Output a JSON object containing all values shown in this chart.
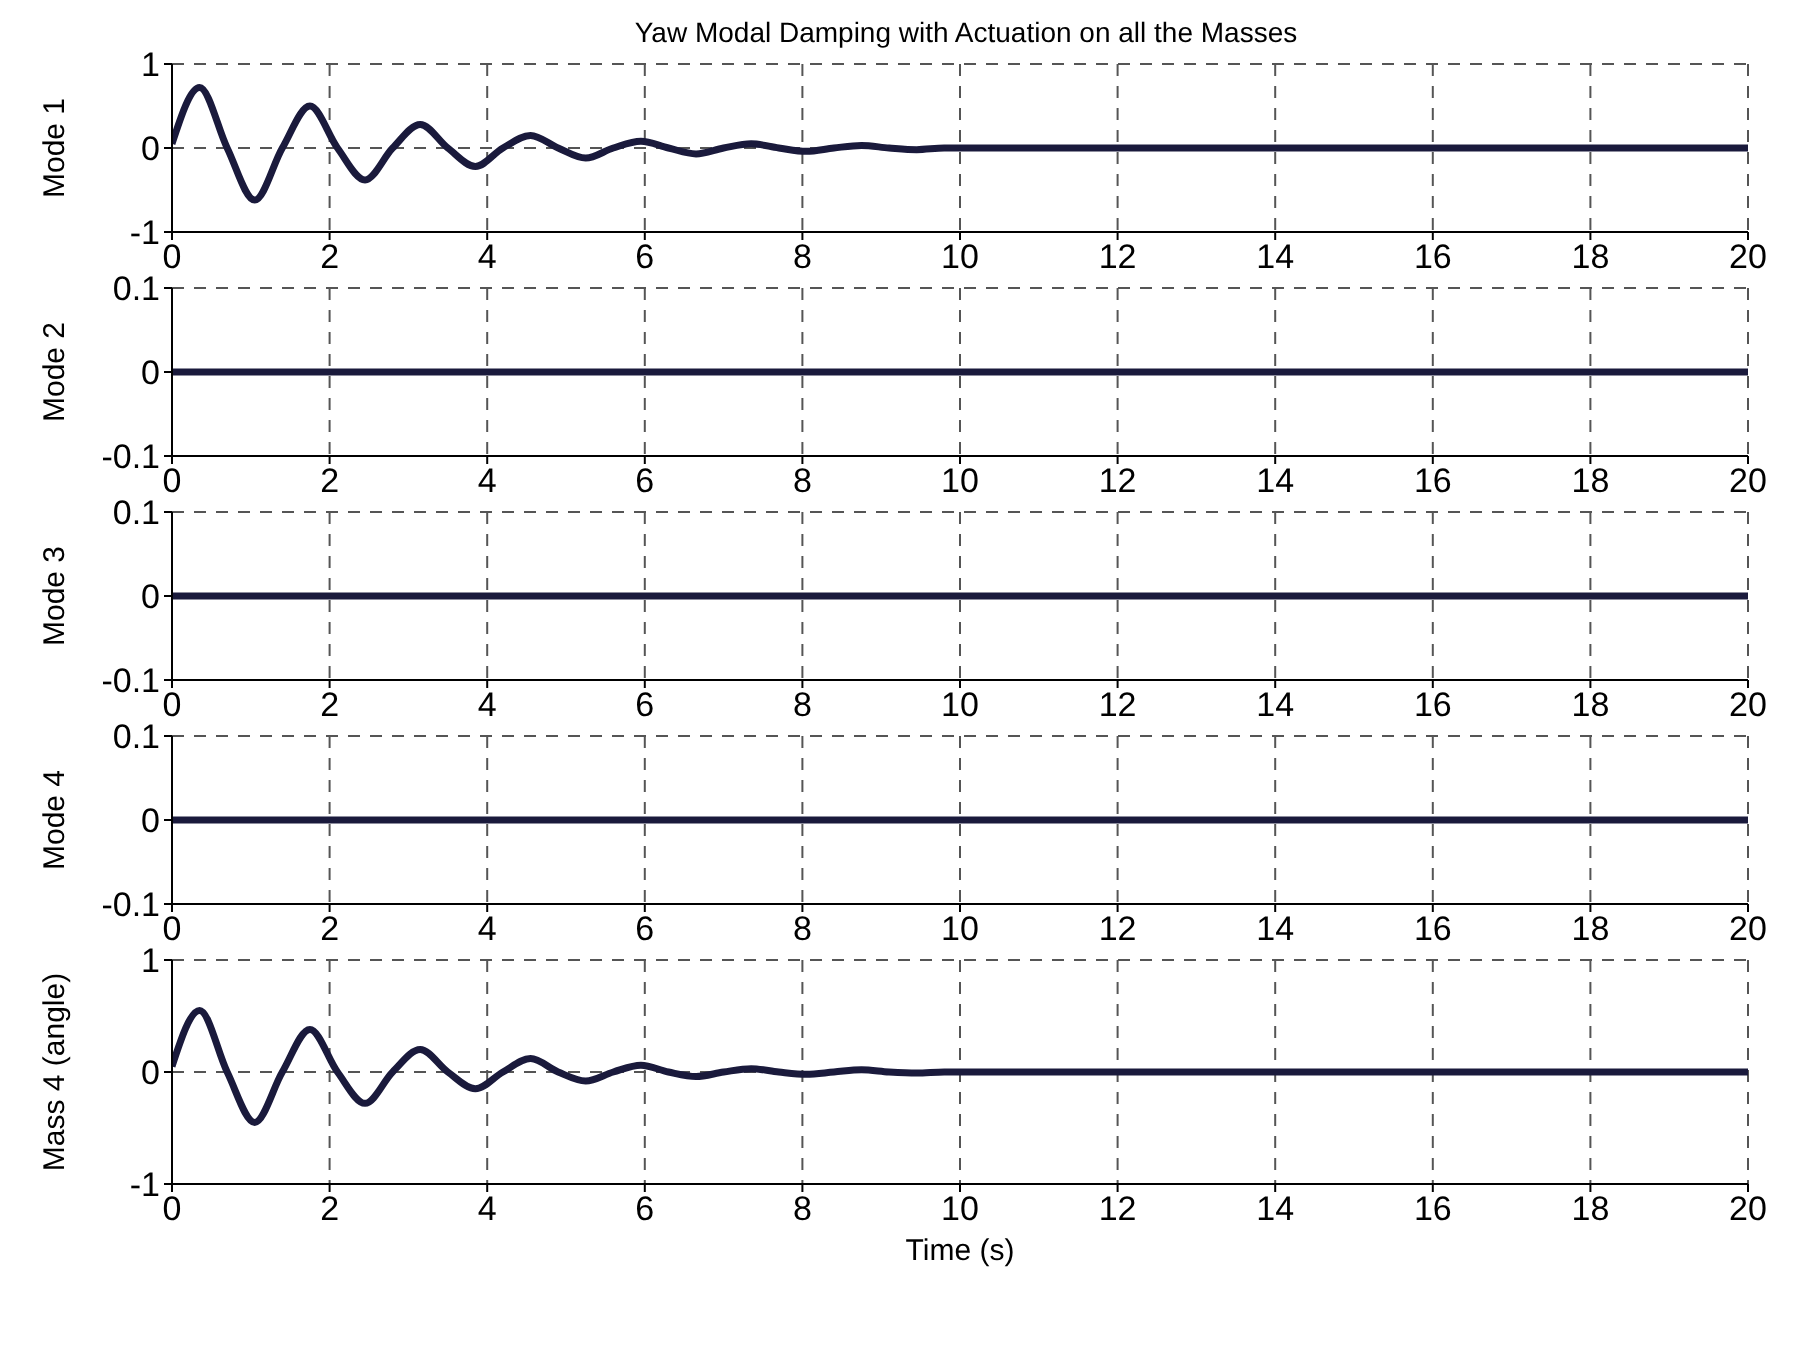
{
  "chart_data": [
    {
      "type": "line",
      "title": "Yaw Modal Damping with Actuation on all the Masses",
      "ylabel": "Mode 1",
      "x": [
        0,
        0.35,
        0.7,
        1.05,
        1.4,
        1.75,
        2.1,
        2.45,
        2.8,
        3.15,
        3.5,
        3.85,
        4.2,
        4.55,
        4.9,
        5.25,
        5.6,
        5.95,
        6.3,
        6.65,
        7.0,
        7.35,
        7.7,
        8.05,
        8.4,
        8.75,
        9.1,
        9.45,
        9.8,
        20
      ],
      "series": [
        {
          "color": "#1a1a3c",
          "values": [
            0.05,
            0.72,
            0,
            -0.62,
            0,
            0.5,
            0,
            -0.38,
            0,
            0.28,
            0,
            -0.22,
            0,
            0.15,
            0,
            -0.12,
            0,
            0.08,
            0,
            -0.07,
            0,
            0.05,
            0,
            -0.04,
            0,
            0.03,
            0,
            -0.02,
            0,
            0
          ]
        }
      ],
      "xlim": [
        0,
        20
      ],
      "xticks": [
        0,
        2,
        4,
        6,
        8,
        10,
        12,
        14,
        16,
        18,
        20
      ],
      "ylim": [
        -1,
        1
      ],
      "yticks": [
        -1,
        0,
        1
      ],
      "grid": true,
      "marker": "none",
      "line_style": "solid"
    },
    {
      "type": "line",
      "ylabel": "Mode 2",
      "x": [
        0,
        20
      ],
      "series": [
        {
          "color": "#1a1a3c",
          "values": [
            0,
            0
          ]
        }
      ],
      "xlim": [
        0,
        20
      ],
      "xticks": [
        0,
        2,
        4,
        6,
        8,
        10,
        12,
        14,
        16,
        18,
        20
      ],
      "ylim": [
        -0.1,
        0.1
      ],
      "yticks": [
        -0.1,
        0,
        0.1
      ],
      "grid": true,
      "marker": "none",
      "line_style": "solid"
    },
    {
      "type": "line",
      "ylabel": "Mode 3",
      "x": [
        0,
        20
      ],
      "series": [
        {
          "color": "#1a1a3c",
          "values": [
            0,
            0
          ]
        }
      ],
      "xlim": [
        0,
        20
      ],
      "xticks": [
        0,
        2,
        4,
        6,
        8,
        10,
        12,
        14,
        16,
        18,
        20
      ],
      "ylim": [
        -0.1,
        0.1
      ],
      "yticks": [
        -0.1,
        0,
        0.1
      ],
      "grid": true,
      "marker": "none",
      "line_style": "solid"
    },
    {
      "type": "line",
      "ylabel": "Mode 4",
      "x": [
        0,
        20
      ],
      "series": [
        {
          "color": "#1a1a3c",
          "values": [
            0,
            0
          ]
        }
      ],
      "xlim": [
        0,
        20
      ],
      "xticks": [
        0,
        2,
        4,
        6,
        8,
        10,
        12,
        14,
        16,
        18,
        20
      ],
      "ylim": [
        -0.1,
        0.1
      ],
      "yticks": [
        -0.1,
        0,
        0.1
      ],
      "grid": true,
      "marker": "none",
      "line_style": "solid"
    },
    {
      "type": "line",
      "ylabel": "Mass 4 (angle)",
      "xlabel": "Time (s)",
      "x": [
        0,
        0.35,
        0.7,
        1.05,
        1.4,
        1.75,
        2.1,
        2.45,
        2.8,
        3.15,
        3.5,
        3.85,
        4.2,
        4.55,
        4.9,
        5.25,
        5.6,
        5.95,
        6.3,
        6.65,
        7.0,
        7.35,
        7.7,
        8.05,
        8.4,
        8.75,
        9.1,
        9.45,
        9.8,
        20
      ],
      "series": [
        {
          "color": "#1a1a3c",
          "values": [
            0.05,
            0.55,
            0,
            -0.45,
            0,
            0.38,
            0,
            -0.28,
            0,
            0.2,
            0,
            -0.15,
            0,
            0.12,
            0,
            -0.08,
            0,
            0.06,
            0,
            -0.04,
            0,
            0.03,
            0,
            -0.02,
            0,
            0.02,
            0,
            -0.01,
            0,
            0
          ]
        }
      ],
      "xlim": [
        0,
        20
      ],
      "xticks": [
        0,
        2,
        4,
        6,
        8,
        10,
        12,
        14,
        16,
        18,
        20
      ],
      "ylim": [
        -1,
        1
      ],
      "yticks": [
        -1,
        0,
        1
      ],
      "grid": true,
      "marker": "none",
      "line_style": "solid"
    }
  ]
}
